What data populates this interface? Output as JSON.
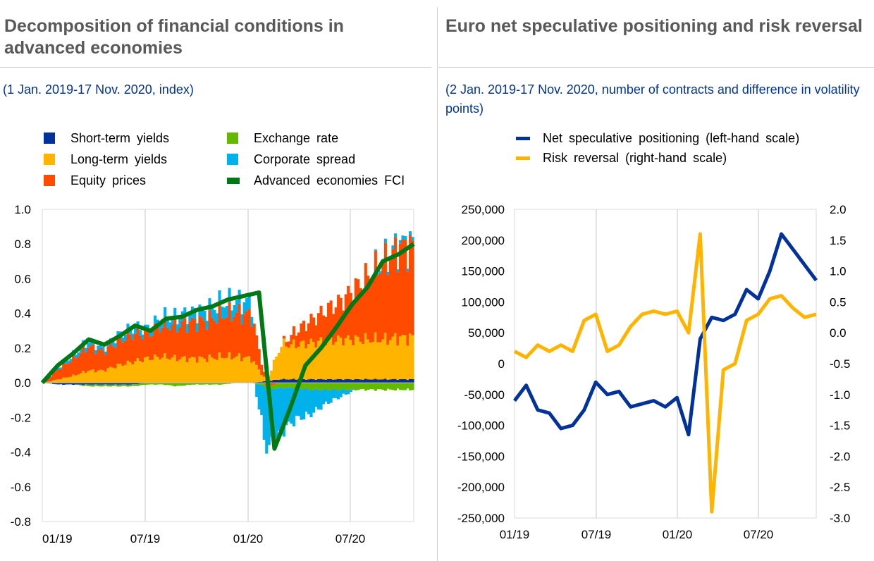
{
  "left": {
    "title": "Decomposition of financial conditions in advanced economies",
    "subtitle": "(1 Jan. 2019-17 Nov. 2020, index)",
    "legend": [
      {
        "label": "Short-term yields",
        "color": "#003299"
      },
      {
        "label": "Long-term yields",
        "color": "#ffb400"
      },
      {
        "label": "Equity prices",
        "color": "#ff4b00"
      },
      {
        "label": "Exchange rate",
        "color": "#65b800"
      },
      {
        "label": "Corporate spread",
        "color": "#00b1ea"
      },
      {
        "label": "Advanced economies FCI",
        "color": "#007816"
      }
    ]
  },
  "right": {
    "title": "Euro net speculative positioning and risk reversal",
    "subtitle": "(2 Jan. 2019-17 Nov. 2020, number of contracts and difference in volatility points)",
    "legend": [
      {
        "label": "Net speculative positioning (left-hand scale)",
        "color": "#003299"
      },
      {
        "label": "Risk reversal (right-hand scale)",
        "color": "#ffb400"
      }
    ]
  },
  "chart_data": [
    {
      "type": "bar",
      "stacked": true,
      "x_ticks": [
        "01/19",
        "07/19",
        "01/20",
        "07/20"
      ],
      "ylim": [
        -0.8,
        1.0
      ],
      "y_ticks": [
        "1.0",
        "0.8",
        "0.6",
        "0.4",
        "0.2",
        "0.0",
        "-0.2",
        "-0.4",
        "-0.6",
        "-0.8"
      ],
      "grid": "vertical",
      "legend_position": "top",
      "x": [
        "2019-01",
        "2019-02",
        "2019-03",
        "2019-04",
        "2019-05",
        "2019-06",
        "2019-07",
        "2019-08",
        "2019-09",
        "2019-10",
        "2019-11",
        "2019-12",
        "2020-01",
        "2020-02",
        "2020-02b",
        "2020-03",
        "2020-03b",
        "2020-04",
        "2020-05",
        "2020-06",
        "2020-07",
        "2020-08",
        "2020-09",
        "2020-10",
        "2020-11"
      ],
      "series": [
        {
          "name": "Short-term yields",
          "color": "#003299",
          "values": [
            0.0,
            -0.01,
            -0.01,
            -0.01,
            -0.01,
            -0.01,
            -0.01,
            0.0,
            0.0,
            0.0,
            0.0,
            0.0,
            0.0,
            0.0,
            0.0,
            0.01,
            0.02,
            0.02,
            0.02,
            0.02,
            0.02,
            0.02,
            0.02,
            0.02,
            0.02
          ]
        },
        {
          "name": "Long-term yields",
          "color": "#ffb400",
          "values": [
            0.0,
            0.02,
            0.04,
            0.07,
            0.07,
            0.1,
            0.12,
            0.14,
            0.15,
            0.14,
            0.14,
            0.14,
            0.15,
            0.15,
            0.14,
            0.0,
            0.2,
            0.2,
            0.21,
            0.22,
            0.23,
            0.23,
            0.23,
            0.23,
            0.24
          ]
        },
        {
          "name": "Equity prices",
          "color": "#ff4b00",
          "values": [
            0.0,
            0.06,
            0.1,
            0.14,
            0.11,
            0.14,
            0.16,
            0.14,
            0.18,
            0.19,
            0.21,
            0.22,
            0.24,
            0.25,
            0.25,
            -0.02,
            0.0,
            0.08,
            0.13,
            0.18,
            0.22,
            0.3,
            0.38,
            0.45,
            0.52
          ]
        },
        {
          "name": "Exchange rate",
          "color": "#65b800",
          "values": [
            0.0,
            0.0,
            0.0,
            -0.01,
            -0.01,
            -0.01,
            -0.01,
            -0.01,
            -0.01,
            -0.02,
            -0.01,
            -0.01,
            -0.01,
            0.0,
            0.0,
            -0.02,
            -0.03,
            -0.03,
            -0.04,
            -0.04,
            -0.04,
            -0.04,
            -0.04,
            -0.04,
            -0.04
          ]
        },
        {
          "name": "Corporate spread",
          "color": "#00b1ea",
          "values": [
            0.0,
            0.01,
            0.02,
            0.03,
            0.02,
            0.03,
            0.04,
            0.03,
            0.05,
            0.05,
            0.06,
            0.06,
            0.07,
            0.07,
            0.07,
            -0.35,
            -0.25,
            -0.18,
            -0.14,
            -0.08,
            -0.04,
            0.0,
            0.0,
            0.02,
            0.02
          ]
        },
        {
          "name": "Advanced economies FCI",
          "color": "#007816",
          "type": "line",
          "values": [
            0.0,
            0.1,
            0.17,
            0.25,
            0.22,
            0.27,
            0.33,
            0.3,
            0.37,
            0.38,
            0.42,
            0.44,
            0.48,
            0.5,
            0.52,
            -0.38,
            -0.15,
            0.1,
            0.2,
            0.32,
            0.45,
            0.55,
            0.7,
            0.74,
            0.8
          ]
        }
      ]
    },
    {
      "type": "line",
      "x_ticks": [
        "01/19",
        "07/19",
        "01/20",
        "07/20"
      ],
      "ylim_left": [
        -250000,
        250000
      ],
      "y_ticks_left": [
        "250,000",
        "200,000",
        "150,000",
        "100,000",
        "50,000",
        "0",
        "-50,000",
        "-100,000",
        "-150,000",
        "-200,000",
        "-250,000"
      ],
      "ylim_right": [
        -3.0,
        2.0
      ],
      "y_ticks_right": [
        "2.0",
        "1.5",
        "1.0",
        "0.5",
        "0.0",
        "-0.5",
        "-1.0",
        "-1.5",
        "-2.0",
        "-2.5",
        "-3.0"
      ],
      "grid": "vertical",
      "legend_position": "top",
      "x": [
        "2019-01-02",
        "2019-01-29",
        "2019-02-26",
        "2019-03-26",
        "2019-04-23",
        "2019-05-21",
        "2019-06-18",
        "2019-07-16",
        "2019-08-13",
        "2019-09-10",
        "2019-10-08",
        "2019-11-05",
        "2019-12-03",
        "2019-12-31",
        "2020-01-28",
        "2020-02-25",
        "2020-03-10",
        "2020-03-24",
        "2020-04-21",
        "2020-05-19",
        "2020-06-16",
        "2020-07-14",
        "2020-08-11",
        "2020-08-25",
        "2020-09-22",
        "2020-10-20",
        "2020-11-17"
      ],
      "series": [
        {
          "name": "Net speculative positioning (left-hand scale)",
          "color": "#003299",
          "axis": "left",
          "values": [
            -60000,
            -35000,
            -75000,
            -80000,
            -105000,
            -100000,
            -75000,
            -30000,
            -50000,
            -45000,
            -70000,
            -65000,
            -60000,
            -70000,
            -55000,
            -115000,
            40000,
            75000,
            70000,
            80000,
            120000,
            105000,
            150000,
            210000,
            185000,
            160000,
            135000
          ]
        },
        {
          "name": "Risk reversal (right-hand scale)",
          "color": "#ffb400",
          "axis": "right",
          "values": [
            -0.3,
            -0.4,
            -0.2,
            -0.3,
            -0.2,
            -0.3,
            0.2,
            0.3,
            -0.3,
            -0.2,
            0.1,
            0.3,
            0.35,
            0.3,
            0.35,
            0.0,
            1.6,
            -2.9,
            -0.6,
            -0.5,
            0.2,
            0.3,
            0.55,
            0.6,
            0.4,
            0.25,
            0.3
          ]
        }
      ]
    }
  ]
}
